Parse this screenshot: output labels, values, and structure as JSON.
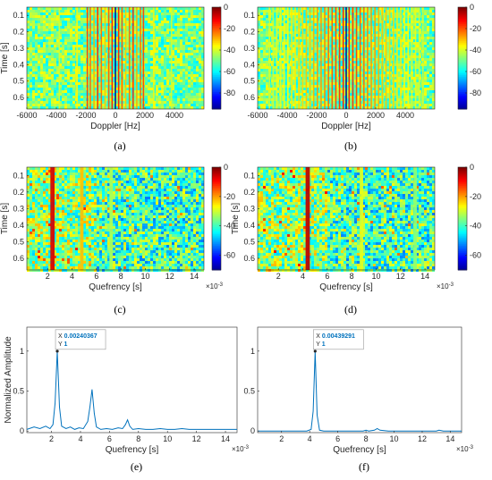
{
  "chart_data": [
    {
      "id": "a",
      "type": "heatmap",
      "caption": "(a)",
      "xlabel": "Doppler [Hz]",
      "ylabel": "Time [s]",
      "xlim": [
        -6000,
        6000
      ],
      "ylim": [
        0.05,
        0.67
      ],
      "xticks": [
        "-6000",
        "-4000",
        "-2000",
        "0",
        "2000",
        "4000"
      ],
      "yticks": [
        "0.1",
        "0.2",
        "0.3",
        "0.4",
        "0.5",
        "0.6"
      ],
      "colorbar": {
        "range": [
          -95,
          0
        ],
        "ticks": [
          "0",
          "-20",
          "-40",
          "-60",
          "-80"
        ]
      },
      "lines": [
        {
          "x": 0,
          "level": -95
        },
        {
          "x": -1900,
          "level": -18
        },
        {
          "x": -1700,
          "level": -22
        },
        {
          "x": -1450,
          "level": -28
        },
        {
          "x": -1200,
          "level": -16
        },
        {
          "x": -950,
          "level": -22
        },
        {
          "x": -700,
          "level": -30
        },
        {
          "x": -450,
          "level": -20
        },
        {
          "x": -220,
          "level": -14
        },
        {
          "x": 220,
          "level": -14
        },
        {
          "x": 450,
          "level": -20
        },
        {
          "x": 700,
          "level": -30
        },
        {
          "x": 950,
          "level": -22
        },
        {
          "x": 1200,
          "level": -16
        },
        {
          "x": 1450,
          "level": -28
        },
        {
          "x": 1700,
          "level": -22
        },
        {
          "x": 1900,
          "level": -18
        },
        {
          "x": -3800,
          "level": -40
        },
        {
          "x": 3800,
          "level": -40
        },
        {
          "x": -2600,
          "level": -35
        },
        {
          "x": 2600,
          "level": -35
        }
      ]
    },
    {
      "id": "b",
      "type": "heatmap",
      "caption": "(b)",
      "xlabel": "Doppler [Hz]",
      "ylabel": "",
      "xlim": [
        -6000,
        6000
      ],
      "ylim": [
        0.05,
        0.67
      ],
      "xticks": [
        "-6000",
        "-4000",
        "-2000",
        "0",
        "2000",
        "4000"
      ],
      "yticks": [
        "0.1",
        "0.2",
        "0.3",
        "0.4",
        "0.5",
        "0.6"
      ],
      "colorbar": {
        "range": [
          -95,
          0
        ],
        "ticks": [
          "0",
          "-20",
          "-40",
          "-60",
          "-80"
        ]
      },
      "lines": [
        {
          "x": 0,
          "level": -95
        },
        {
          "x": -200,
          "level": -14
        },
        {
          "x": 200,
          "level": -14
        },
        {
          "x": -450,
          "level": -16
        },
        {
          "x": 450,
          "level": -16
        },
        {
          "x": -700,
          "level": -18
        },
        {
          "x": 700,
          "level": -18
        },
        {
          "x": -950,
          "level": -20
        },
        {
          "x": 950,
          "level": -20
        },
        {
          "x": -1200,
          "level": -22
        },
        {
          "x": 1200,
          "level": -22
        },
        {
          "x": -1450,
          "level": -24
        },
        {
          "x": 1450,
          "level": -24
        },
        {
          "x": -1700,
          "level": -26
        },
        {
          "x": 1700,
          "level": -26
        },
        {
          "x": -1950,
          "level": -26
        },
        {
          "x": 1950,
          "level": -26
        },
        {
          "x": -2200,
          "level": -28
        },
        {
          "x": 2200,
          "level": -28
        },
        {
          "x": -2450,
          "level": -30
        },
        {
          "x": 2450,
          "level": -30
        },
        {
          "x": -2700,
          "level": -30
        },
        {
          "x": 2700,
          "level": -30
        },
        {
          "x": -2950,
          "level": -32
        },
        {
          "x": 2950,
          "level": -32
        },
        {
          "x": -3200,
          "level": -32
        },
        {
          "x": 3200,
          "level": -32
        },
        {
          "x": -3450,
          "level": -34
        },
        {
          "x": 3450,
          "level": -34
        },
        {
          "x": -3700,
          "level": -34
        },
        {
          "x": 3700,
          "level": -34
        },
        {
          "x": -3950,
          "level": -36
        },
        {
          "x": 3950,
          "level": -36
        },
        {
          "x": -4200,
          "level": -36
        },
        {
          "x": 4200,
          "level": -36
        },
        {
          "x": -4450,
          "level": -38
        },
        {
          "x": 4450,
          "level": -38
        },
        {
          "x": -4700,
          "level": -38
        },
        {
          "x": 4700,
          "level": -38
        },
        {
          "x": -4950,
          "level": -40
        },
        {
          "x": 4950,
          "level": -40
        },
        {
          "x": -5200,
          "level": -40
        },
        {
          "x": 5200,
          "level": -40
        }
      ]
    },
    {
      "id": "c",
      "type": "heatmap",
      "caption": "(c)",
      "xlabel": "Quefrency [s]",
      "ylabel": "Time [s]",
      "xexponent": "×10",
      "xexponent_power": "-3",
      "xlim": [
        0.3,
        14.8
      ],
      "ylim": [
        0.05,
        0.67
      ],
      "xticks": [
        "2",
        "4",
        "6",
        "8",
        "10",
        "12",
        "14"
      ],
      "yticks": [
        "0.1",
        "0.2",
        "0.3",
        "0.4",
        "0.5",
        "0.6"
      ],
      "colorbar": {
        "range": [
          -70,
          0
        ],
        "ticks": [
          "0",
          "-20",
          "-40",
          "-60"
        ]
      },
      "lines": [
        {
          "x": 2.4,
          "level": -6,
          "width": 0.35
        },
        {
          "x": 4.8,
          "level": -22,
          "width": 0.28
        },
        {
          "x": 7.2,
          "level": -32,
          "width": 0.28
        }
      ]
    },
    {
      "id": "d",
      "type": "heatmap",
      "caption": "(d)",
      "xlabel": "Quefrency [s]",
      "ylabel": "Time [s]",
      "xexponent": "×10",
      "xexponent_power": "-3",
      "xlim": [
        0.3,
        14.8
      ],
      "ylim": [
        0.05,
        0.67
      ],
      "xticks": [
        "2",
        "4",
        "6",
        "8",
        "10",
        "12",
        "14"
      ],
      "yticks": [
        "0.1",
        "0.2",
        "0.3",
        "0.4",
        "0.5",
        "0.6"
      ],
      "colorbar": {
        "range": [
          -70,
          0
        ],
        "ticks": [
          "0",
          "-20",
          "-40",
          "-60"
        ]
      },
      "lines": [
        {
          "x": 4.4,
          "level": -4,
          "width": 0.35
        },
        {
          "x": 8.8,
          "level": -28,
          "width": 0.28
        },
        {
          "x": 13.2,
          "level": -34,
          "width": 0.28
        }
      ]
    },
    {
      "id": "e",
      "type": "line",
      "caption": "(e)",
      "xlabel": "Quefrency [s]",
      "ylabel": "Normalized Amplitude",
      "xexponent": "×10",
      "xexponent_power": "-3",
      "xlim": [
        0.3,
        14.8
      ],
      "ylim": [
        -0.02,
        1.3
      ],
      "xticks": [
        "2",
        "4",
        "6",
        "8",
        "10",
        "12",
        "14"
      ],
      "yticks": [
        "0",
        "0.5",
        "1"
      ],
      "color": "#0072bd",
      "x": [
        0.3,
        0.8,
        1.2,
        1.6,
        1.9,
        2.1,
        2.25,
        2.4,
        2.55,
        2.7,
        3.0,
        3.3,
        3.6,
        3.9,
        4.2,
        4.5,
        4.65,
        4.8,
        4.95,
        5.1,
        5.4,
        5.8,
        6.2,
        6.6,
        6.9,
        7.1,
        7.25,
        7.4,
        7.6,
        8.0,
        8.5,
        9.0,
        9.5,
        10.0,
        10.5,
        11.0,
        11.5,
        12.0,
        12.5,
        13.0,
        13.5,
        14.0,
        14.8
      ],
      "y": [
        0.02,
        0.05,
        0.03,
        0.06,
        0.03,
        0.08,
        0.35,
        1.0,
        0.3,
        0.06,
        0.03,
        0.05,
        0.02,
        0.04,
        0.03,
        0.12,
        0.3,
        0.52,
        0.22,
        0.05,
        0.02,
        0.03,
        0.02,
        0.04,
        0.03,
        0.08,
        0.14,
        0.06,
        0.02,
        0.03,
        0.02,
        0.02,
        0.03,
        0.02,
        0.02,
        0.03,
        0.02,
        0.02,
        0.02,
        0.02,
        0.02,
        0.02,
        0.02
      ],
      "datatip": {
        "point": [
          2.4,
          1.0
        ],
        "x_label": "X",
        "x_value": "0.00240367",
        "y_label": "Y",
        "y_value": "1"
      }
    },
    {
      "id": "f",
      "type": "line",
      "caption": "(f)",
      "xlabel": "Quefrency [s]",
      "ylabel": "",
      "xexponent": "×10",
      "xexponent_power": "-3",
      "xlim": [
        0.3,
        14.8
      ],
      "ylim": [
        -0.02,
        1.3
      ],
      "xticks": [
        "2",
        "4",
        "6",
        "8",
        "10",
        "12",
        "14"
      ],
      "yticks": [
        "0",
        "0.5",
        "1"
      ],
      "color": "#0072bd",
      "x": [
        0.3,
        1.0,
        2.0,
        3.0,
        3.8,
        4.1,
        4.25,
        4.39,
        4.53,
        4.7,
        5.0,
        6.0,
        7.0,
        7.8,
        8.0,
        8.2,
        8.6,
        8.8,
        9.0,
        9.6,
        10.5,
        11.5,
        12.5,
        13.0,
        13.2,
        13.5,
        14.0,
        14.8
      ],
      "y": [
        0.0,
        0.0,
        0.0,
        0.0,
        0.0,
        0.02,
        0.25,
        1.0,
        0.2,
        0.01,
        0.0,
        0.0,
        0.0,
        0.0,
        0.01,
        0.0,
        0.01,
        0.03,
        0.01,
        0.0,
        0.0,
        0.0,
        0.0,
        0.0,
        0.01,
        0.0,
        0.0,
        0.0
      ],
      "datatip": {
        "point": [
          4.39,
          1.0
        ],
        "x_label": "X",
        "x_value": "0.00439291",
        "y_label": "Y",
        "y_value": "1"
      }
    }
  ]
}
